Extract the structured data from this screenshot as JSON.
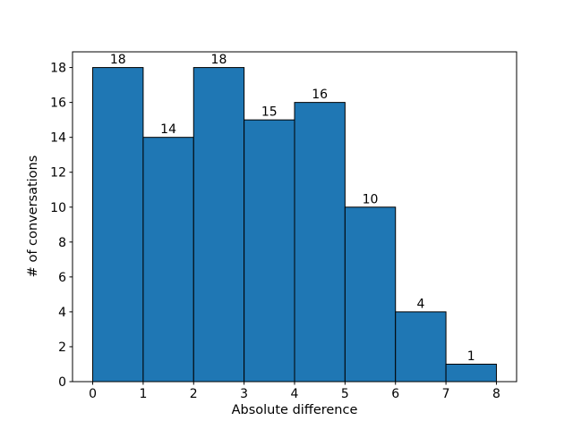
{
  "chart_data": {
    "type": "bar",
    "subtype": "histogram",
    "title": "",
    "xlabel": "Absolute difference",
    "ylabel": "# of conversations",
    "bin_edges": [
      0,
      1,
      2,
      3,
      4,
      5,
      6,
      7,
      8
    ],
    "values": [
      18,
      14,
      18,
      15,
      16,
      10,
      4,
      1
    ],
    "bar_labels": [
      "18",
      "14",
      "18",
      "15",
      "16",
      "10",
      "4",
      "1"
    ],
    "xticks": [
      0,
      1,
      2,
      3,
      4,
      5,
      6,
      7,
      8
    ],
    "yticks": [
      0,
      2,
      4,
      6,
      8,
      10,
      12,
      14,
      16,
      18
    ],
    "xlim": [
      -0.4,
      8.4
    ],
    "ylim": [
      0,
      18.9
    ],
    "grid": false,
    "legend_visible": false,
    "colors": {
      "bar_fill": "#1f77b4",
      "bar_edge": "#000000",
      "axis": "#000000",
      "text": "#000000",
      "background": "#ffffff"
    }
  }
}
